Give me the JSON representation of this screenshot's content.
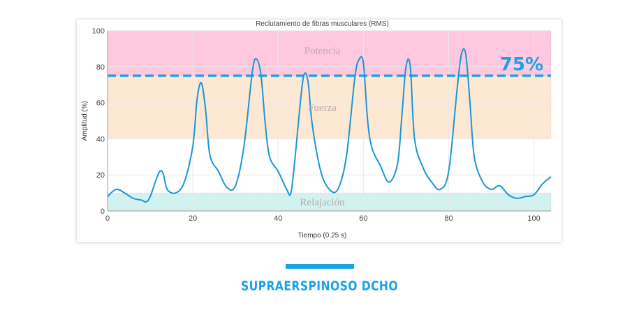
{
  "chart_data": {
    "type": "line",
    "title": "Reclutamiento de fibras musculares (RMS)",
    "xlabel": "Tiempo (0.25 s)",
    "ylabel": "Amplitud (%)",
    "xlim": [
      0,
      104
    ],
    "ylim": [
      0,
      100
    ],
    "xticks": [
      "0",
      "20",
      "40",
      "60",
      "80",
      "100"
    ],
    "yticks": [
      "0",
      "20",
      "40",
      "60",
      "80",
      "100"
    ],
    "grid": true,
    "bands": [
      {
        "label": "Potencia",
        "from": 75,
        "to": 100,
        "color": "#ffc8de"
      },
      {
        "label": "Fuerza",
        "from": 40,
        "to": 75,
        "color": "#fde9d3"
      },
      {
        "label": "Relajación",
        "from": 0,
        "to": 10,
        "color": "#d2f2f0"
      }
    ],
    "threshold": {
      "value": 75,
      "label": "75%",
      "color": "#1ba1e6"
    },
    "series": [
      {
        "color": "#1a96d4",
        "x": [
          0,
          2,
          4,
          6,
          8,
          9,
          10,
          12,
          13,
          14,
          16,
          18,
          20,
          21,
          22,
          23,
          24,
          26,
          28,
          30,
          32,
          34,
          35,
          36,
          37,
          38,
          40,
          42,
          43,
          44,
          45,
          46,
          47,
          48,
          50,
          52,
          54,
          56,
          58,
          59,
          60,
          61,
          62,
          64,
          66,
          68,
          69,
          70,
          71,
          72,
          74,
          76,
          78,
          80,
          82,
          83,
          84,
          85,
          86,
          88,
          90,
          92,
          94,
          96,
          98,
          100,
          102,
          104
        ],
        "y": [
          8,
          12,
          10,
          7,
          6,
          5,
          8,
          21,
          21,
          12,
          10,
          16,
          36,
          62,
          71,
          56,
          31,
          22,
          13,
          14,
          36,
          78,
          84,
          75,
          48,
          30,
          22,
          12,
          10,
          30,
          55,
          75,
          72,
          48,
          22,
          12,
          12,
          30,
          74,
          84,
          82,
          50,
          35,
          25,
          16,
          26,
          52,
          80,
          80,
          40,
          24,
          16,
          12,
          22,
          68,
          87,
          87,
          60,
          30,
          16,
          12,
          14,
          9,
          7,
          8,
          9,
          15,
          19
        ]
      }
    ]
  },
  "caption": {
    "text": "SUPRAERSPINOSO DCHO",
    "bar_color": "#1ba1e6"
  }
}
